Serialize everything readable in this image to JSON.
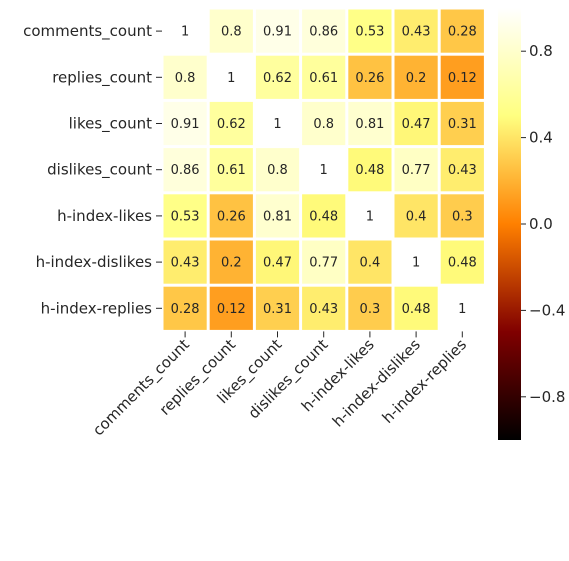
{
  "chart_data": {
    "type": "heatmap",
    "title": "",
    "xlabel": "",
    "ylabel": "",
    "colormap": "afmhot",
    "rows": [
      "comments_count",
      "replies_count",
      "likes_count",
      "dislikes_count",
      "h-index-likes",
      "h-index-dislikes",
      "h-index-replies"
    ],
    "columns": [
      "comments_count",
      "replies_count",
      "likes_count",
      "dislikes_count",
      "h-index-likes",
      "h-index-dislikes",
      "h-index-replies"
    ],
    "values": [
      [
        1,
        0.8,
        0.91,
        0.86,
        0.53,
        0.43,
        0.28
      ],
      [
        0.8,
        1,
        0.62,
        0.61,
        0.26,
        0.2,
        0.12
      ],
      [
        0.91,
        0.62,
        1,
        0.8,
        0.81,
        0.47,
        0.31
      ],
      [
        0.86,
        0.61,
        0.8,
        1,
        0.48,
        0.77,
        0.43
      ],
      [
        0.53,
        0.26,
        0.81,
        0.48,
        1,
        0.4,
        0.3
      ],
      [
        0.43,
        0.2,
        0.47,
        0.77,
        0.4,
        1,
        0.48
      ],
      [
        0.28,
        0.12,
        0.31,
        0.43,
        0.3,
        0.48,
        1
      ]
    ],
    "colorbar": {
      "range": [
        -1,
        1
      ],
      "ticks": [
        0.8,
        0.4,
        0.0,
        -0.4,
        -0.8
      ],
      "tick_labels": [
        "0.8",
        "0.4",
        "0.0",
        "−0.4",
        "−0.8"
      ]
    }
  }
}
